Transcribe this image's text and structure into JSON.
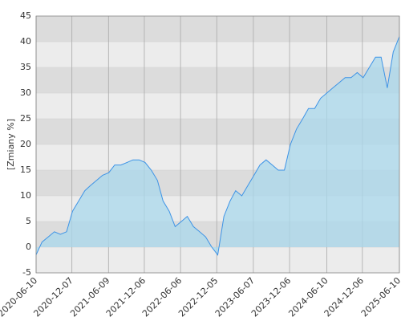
{
  "chart_data": {
    "type": "area",
    "y_label": "[Zmiany %]",
    "x": [
      "2020-06-10",
      "2020-07-10",
      "2020-08-10",
      "2020-09-10",
      "2020-10-10",
      "2020-11-10",
      "2020-12-10",
      "2021-01-10",
      "2021-02-10",
      "2021-03-10",
      "2021-04-10",
      "2021-05-10",
      "2021-06-10",
      "2021-07-10",
      "2021-08-10",
      "2021-09-10",
      "2021-10-10",
      "2021-11-10",
      "2021-12-10",
      "2022-01-10",
      "2022-02-10",
      "2022-03-10",
      "2022-04-10",
      "2022-05-10",
      "2022-06-10",
      "2022-07-10",
      "2022-08-10",
      "2022-09-10",
      "2022-10-10",
      "2022-11-10",
      "2022-12-10",
      "2023-01-10",
      "2023-02-10",
      "2023-03-10",
      "2023-04-10",
      "2023-05-10",
      "2023-06-10",
      "2023-07-10",
      "2023-08-10",
      "2023-09-10",
      "2023-10-10",
      "2023-11-10",
      "2023-12-10",
      "2024-01-10",
      "2024-02-10",
      "2024-03-10",
      "2024-04-10",
      "2024-05-10",
      "2024-06-10",
      "2024-07-10",
      "2024-08-10",
      "2024-09-10",
      "2024-10-10",
      "2024-11-10",
      "2024-12-10",
      "2025-01-10",
      "2025-02-10",
      "2025-03-10",
      "2025-04-10",
      "2025-05-10",
      "2025-06-10"
    ],
    "series": [
      {
        "name": "Zmiany",
        "color": "#3d93e6",
        "fill": "#a9d8ec",
        "values": [
          -1.5,
          1,
          2,
          3,
          2.5,
          3,
          7,
          9,
          11,
          12,
          13,
          14,
          14.5,
          16,
          16,
          16.5,
          17,
          17,
          16.5,
          15,
          13,
          9,
          7,
          4,
          5,
          6,
          4,
          3,
          2,
          0,
          -1.5,
          6,
          9,
          11,
          10,
          12,
          14,
          16,
          17,
          16,
          15,
          15,
          20,
          23,
          25,
          27,
          27,
          29,
          30,
          31,
          32,
          33,
          33,
          34,
          33,
          35,
          37,
          37,
          31,
          38,
          41
        ]
      }
    ],
    "xlim": [
      "2020-06-10",
      "2025-06-10"
    ],
    "xticks": [
      "2020-06-10",
      "2020-12-07",
      "2021-06-09",
      "2021-12-06",
      "2022-06-06",
      "2022-12-05",
      "2023-06-07",
      "2023-12-06",
      "2024-06-10",
      "2024-12-06",
      "2025-06-10"
    ],
    "ylim": [
      -5,
      45
    ],
    "yticks": [
      -5,
      0,
      5,
      10,
      15,
      20,
      25,
      30,
      35,
      40,
      45
    ],
    "grid": true
  }
}
